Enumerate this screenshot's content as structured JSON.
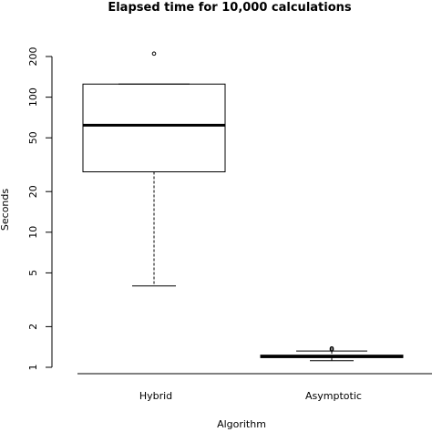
{
  "chart_data": {
    "type": "boxplot",
    "title": "Elapsed time for 10,000 calculations",
    "xlabel": "Algorithm",
    "ylabel": "Seconds",
    "y_scale": "log",
    "ylim": [
      1,
      220
    ],
    "y_ticks": [
      1,
      2,
      5,
      10,
      20,
      50,
      100,
      200
    ],
    "y_tick_labels": [
      "1",
      "2",
      "5",
      "10",
      "20",
      "50",
      "100",
      "200"
    ],
    "grid": false,
    "legend": "none",
    "categories": [
      "Hybrid",
      "Asymptotic"
    ],
    "boxes": [
      {
        "name": "Hybrid",
        "whisker_low": 4.0,
        "q1": 28,
        "median": 62,
        "q3": 125,
        "whisker_high": 125,
        "outliers": [
          210
        ]
      },
      {
        "name": "Asymptotic",
        "whisker_low": 1.12,
        "q1": 1.18,
        "median": 1.2,
        "q3": 1.23,
        "whisker_high": 1.32,
        "outliers": [
          1.38,
          1.35
        ]
      }
    ]
  }
}
